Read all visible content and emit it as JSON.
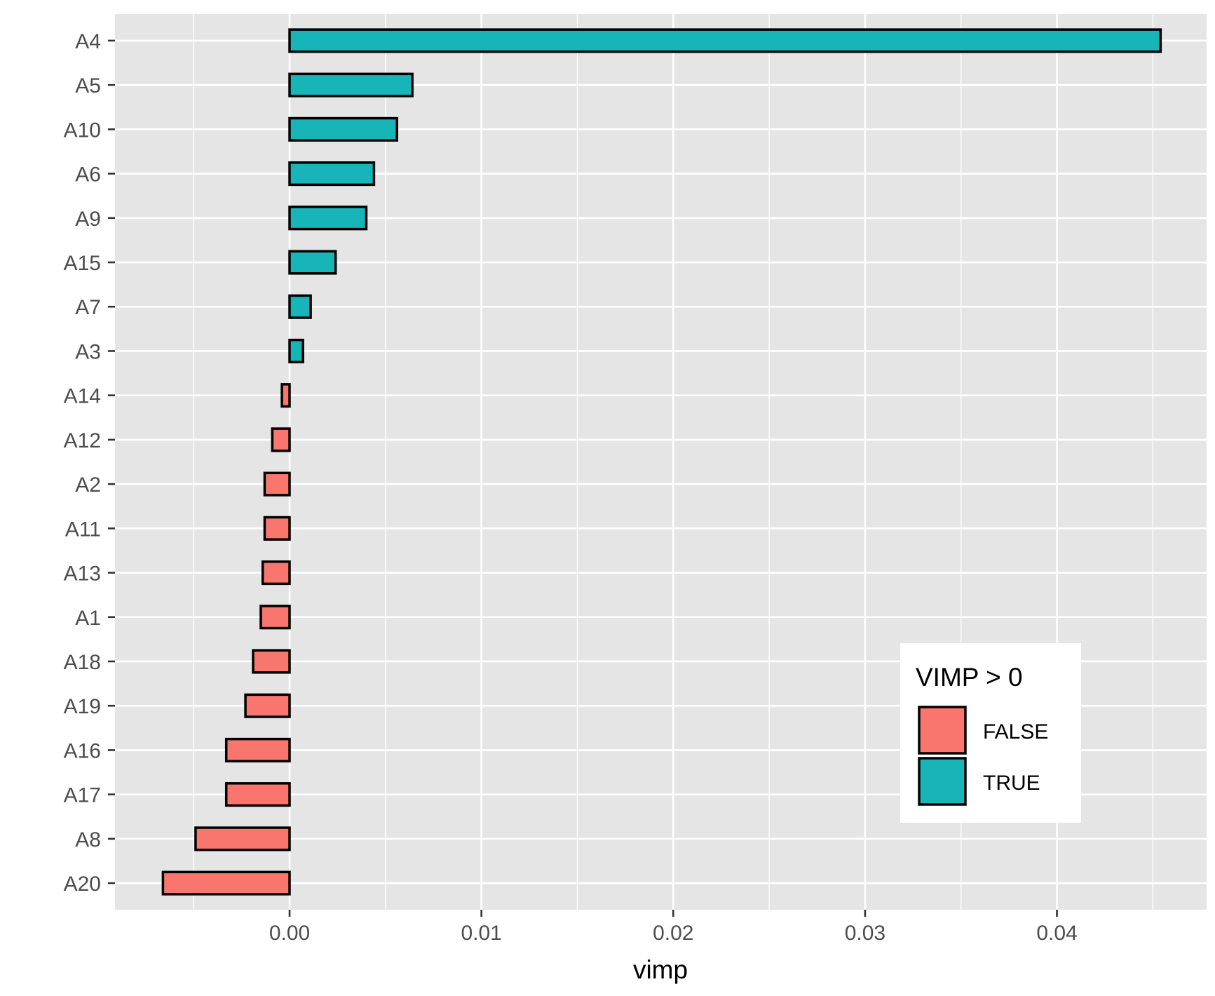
{
  "chart_data": {
    "type": "bar",
    "orientation": "horizontal",
    "xlabel": "vimp",
    "ylabel": "",
    "xlim": [
      -0.0091,
      0.0478
    ],
    "xticks": [
      0.0,
      0.01,
      0.02,
      0.03,
      0.04
    ],
    "xtick_labels": [
      "0.00",
      "0.01",
      "0.02",
      "0.03",
      "0.04"
    ],
    "grid": true,
    "categories": [
      "A4",
      "A5",
      "A10",
      "A6",
      "A9",
      "A15",
      "A7",
      "A3",
      "A14",
      "A12",
      "A2",
      "A11",
      "A13",
      "A1",
      "A18",
      "A19",
      "A16",
      "A17",
      "A8",
      "A20"
    ],
    "values": [
      0.0454,
      0.0064,
      0.0056,
      0.0044,
      0.004,
      0.0024,
      0.0011,
      0.0007,
      -0.0004,
      -0.0009,
      -0.0013,
      -0.0013,
      -0.0014,
      -0.0015,
      -0.0019,
      -0.0023,
      -0.0033,
      -0.0033,
      -0.0049,
      -0.0066
    ],
    "fill_group": [
      "TRUE",
      "TRUE",
      "TRUE",
      "TRUE",
      "TRUE",
      "TRUE",
      "TRUE",
      "TRUE",
      "FALSE",
      "FALSE",
      "FALSE",
      "FALSE",
      "FALSE",
      "FALSE",
      "FALSE",
      "FALSE",
      "FALSE",
      "FALSE",
      "FALSE",
      "FALSE"
    ],
    "legend": {
      "title": "VIMP > 0",
      "position": "bottom-right-inside",
      "entries": [
        {
          "label": "FALSE",
          "color": "#F8766D"
        },
        {
          "label": "TRUE",
          "color": "#00BFC4"
        }
      ]
    },
    "colors": {
      "FALSE": "#F8766D",
      "TRUE": "#17B4B8",
      "panel_background": "#E5E5E5",
      "grid": "#FFFFFF",
      "bar_outline": "#000000"
    }
  }
}
